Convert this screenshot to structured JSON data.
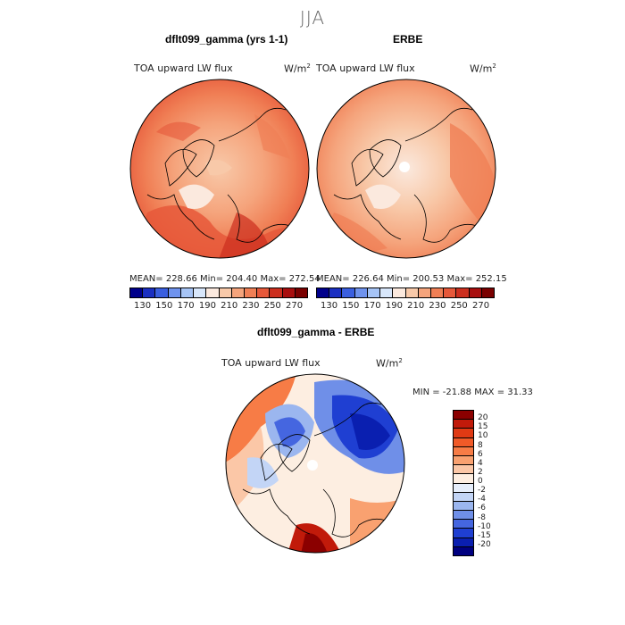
{
  "season": "JJA",
  "panels": [
    {
      "title": "dflt099_gamma (yrs 1-1)",
      "variable": "TOA upward LW flux",
      "units": "W/m",
      "units_exp": "2",
      "stats": "MEAN= 228.66   Min= 204.40   Max= 272.54"
    },
    {
      "title": "ERBE",
      "variable": "TOA upward LW flux",
      "units": "W/m",
      "units_exp": "2",
      "stats": "MEAN= 226.64   Min= 200.53   Max= 252.15"
    }
  ],
  "abs_colorbar": {
    "ticks": [
      "130",
      "150",
      "170",
      "190",
      "210",
      "230",
      "250",
      "270"
    ],
    "colors": [
      "#00008b",
      "#1a2fc2",
      "#3a5fe0",
      "#6f93ee",
      "#a6c4f6",
      "#d8e7fb",
      "#fbe9de",
      "#f8c9a9",
      "#f5a47c",
      "#f07f55",
      "#e6583a",
      "#cc2e1e",
      "#a80e0e",
      "#7a0000"
    ]
  },
  "diff": {
    "title": "dflt099_gamma - ERBE",
    "variable": "TOA upward LW flux",
    "units": "W/m",
    "units_exp": "2",
    "minmax": "MIN = -21.88 MAX =  31.33",
    "levels": [
      "20",
      "15",
      "10",
      "8",
      "6",
      "4",
      "2",
      "0",
      "-2",
      "-4",
      "-6",
      "-8",
      "-10",
      "-15",
      "-20"
    ],
    "colors": [
      "#8b0000",
      "#c11a0a",
      "#e03a14",
      "#f05a28",
      "#f77c46",
      "#f9a170",
      "#fbc7a7",
      "#fdeee1",
      "#e6eefb",
      "#c3d5f6",
      "#9bb6ef",
      "#6f8fe8",
      "#4566e0",
      "#1f3fd2",
      "#0a1fb0",
      "#000080"
    ]
  }
}
